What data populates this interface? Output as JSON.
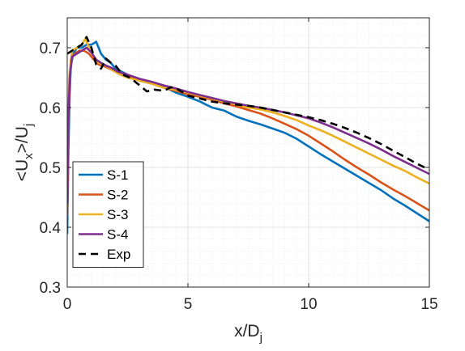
{
  "chart_data": {
    "type": "line",
    "xlabel": "x/D_j",
    "ylabel": "<U_x>/U_j",
    "xlim": [
      0,
      15
    ],
    "ylim": [
      0.3,
      0.75
    ],
    "xticks": [
      0,
      5,
      10,
      15
    ],
    "xtick_labels": [
      "0",
      "5",
      "10",
      "15"
    ],
    "yticks": [
      0.3,
      0.4,
      0.5,
      0.6,
      0.7
    ],
    "ytick_labels": [
      "0.3",
      "0.4",
      "0.5",
      "0.6",
      "0.7"
    ],
    "grid": "major and minor",
    "legend_position": "bottom-left",
    "series": [
      {
        "name": "S-1",
        "color": "#0072BD",
        "dash": "solid",
        "points": [
          [
            0,
            0.39
          ],
          [
            0.05,
            0.53
          ],
          [
            0.1,
            0.62
          ],
          [
            0.15,
            0.67
          ],
          [
            0.25,
            0.69
          ],
          [
            0.4,
            0.7
          ],
          [
            0.6,
            0.7
          ],
          [
            0.8,
            0.705
          ],
          [
            1.0,
            0.705
          ],
          [
            1.2,
            0.71
          ],
          [
            1.4,
            0.69
          ],
          [
            1.6,
            0.68
          ],
          [
            1.8,
            0.675
          ],
          [
            2.0,
            0.665
          ],
          [
            2.5,
            0.655
          ],
          [
            3.0,
            0.645
          ],
          [
            3.5,
            0.64
          ],
          [
            4.0,
            0.635
          ],
          [
            4.5,
            0.625
          ],
          [
            5.0,
            0.618
          ],
          [
            5.5,
            0.61
          ],
          [
            6.0,
            0.6
          ],
          [
            6.5,
            0.595
          ],
          [
            7.0,
            0.585
          ],
          [
            7.5,
            0.578
          ],
          [
            8.0,
            0.572
          ],
          [
            8.5,
            0.565
          ],
          [
            9.0,
            0.558
          ],
          [
            9.5,
            0.548
          ],
          [
            10.0,
            0.535
          ],
          [
            10.5,
            0.522
          ],
          [
            11.0,
            0.51
          ],
          [
            11.5,
            0.498
          ],
          [
            12.0,
            0.486
          ],
          [
            12.5,
            0.474
          ],
          [
            13.0,
            0.462
          ],
          [
            13.5,
            0.448
          ],
          [
            14.0,
            0.436
          ],
          [
            14.5,
            0.423
          ],
          [
            15.0,
            0.41
          ]
        ]
      },
      {
        "name": "S-2",
        "color": "#D95319",
        "dash": "solid",
        "points": [
          [
            0,
            0.42
          ],
          [
            0.05,
            0.56
          ],
          [
            0.1,
            0.64
          ],
          [
            0.15,
            0.68
          ],
          [
            0.3,
            0.69
          ],
          [
            0.5,
            0.695
          ],
          [
            0.7,
            0.695
          ],
          [
            0.9,
            0.69
          ],
          [
            1.1,
            0.68
          ],
          [
            1.3,
            0.672
          ],
          [
            1.6,
            0.668
          ],
          [
            1.9,
            0.662
          ],
          [
            2.2,
            0.655
          ],
          [
            2.5,
            0.652
          ],
          [
            3.0,
            0.645
          ],
          [
            3.5,
            0.64
          ],
          [
            4.0,
            0.633
          ],
          [
            4.5,
            0.628
          ],
          [
            5.0,
            0.622
          ],
          [
            5.5,
            0.618
          ],
          [
            6.0,
            0.613
          ],
          [
            6.5,
            0.607
          ],
          [
            7.0,
            0.602
          ],
          [
            7.5,
            0.596
          ],
          [
            8.0,
            0.59
          ],
          [
            8.5,
            0.582
          ],
          [
            9.0,
            0.573
          ],
          [
            9.5,
            0.564
          ],
          [
            10.0,
            0.553
          ],
          [
            10.5,
            0.54
          ],
          [
            11.0,
            0.527
          ],
          [
            11.5,
            0.513
          ],
          [
            12.0,
            0.5
          ],
          [
            12.5,
            0.488
          ],
          [
            13.0,
            0.475
          ],
          [
            13.5,
            0.463
          ],
          [
            14.0,
            0.452
          ],
          [
            14.5,
            0.44
          ],
          [
            15.0,
            0.428
          ]
        ]
      },
      {
        "name": "S-3",
        "color": "#EDB120",
        "dash": "solid",
        "points": [
          [
            0,
            0.46
          ],
          [
            0.05,
            0.6
          ],
          [
            0.1,
            0.66
          ],
          [
            0.2,
            0.695
          ],
          [
            0.4,
            0.7
          ],
          [
            0.6,
            0.705
          ],
          [
            0.75,
            0.715
          ],
          [
            0.9,
            0.7
          ],
          [
            1.1,
            0.685
          ],
          [
            1.3,
            0.675
          ],
          [
            1.6,
            0.67
          ],
          [
            1.9,
            0.662
          ],
          [
            2.2,
            0.655
          ],
          [
            2.5,
            0.65
          ],
          [
            3.0,
            0.645
          ],
          [
            3.5,
            0.64
          ],
          [
            4.0,
            0.633
          ],
          [
            4.5,
            0.63
          ],
          [
            5.0,
            0.625
          ],
          [
            5.5,
            0.62
          ],
          [
            6.0,
            0.615
          ],
          [
            6.5,
            0.61
          ],
          [
            7.0,
            0.605
          ],
          [
            7.5,
            0.6
          ],
          [
            8.0,
            0.597
          ],
          [
            8.5,
            0.592
          ],
          [
            9.0,
            0.586
          ],
          [
            9.5,
            0.579
          ],
          [
            10.0,
            0.57
          ],
          [
            10.5,
            0.562
          ],
          [
            11.0,
            0.553
          ],
          [
            11.5,
            0.543
          ],
          [
            12.0,
            0.533
          ],
          [
            12.5,
            0.523
          ],
          [
            13.0,
            0.513
          ],
          [
            13.5,
            0.503
          ],
          [
            14.0,
            0.494
          ],
          [
            14.5,
            0.483
          ],
          [
            15.0,
            0.473
          ]
        ]
      },
      {
        "name": "S-4",
        "color": "#7E2F8E",
        "dash": "solid",
        "points": [
          [
            0,
            0.44
          ],
          [
            0.05,
            0.58
          ],
          [
            0.1,
            0.65
          ],
          [
            0.2,
            0.685
          ],
          [
            0.4,
            0.69
          ],
          [
            0.6,
            0.695
          ],
          [
            0.8,
            0.7
          ],
          [
            1.0,
            0.692
          ],
          [
            1.2,
            0.68
          ],
          [
            1.5,
            0.672
          ],
          [
            1.8,
            0.667
          ],
          [
            2.1,
            0.66
          ],
          [
            2.5,
            0.655
          ],
          [
            3.0,
            0.648
          ],
          [
            3.5,
            0.643
          ],
          [
            4.0,
            0.637
          ],
          [
            4.5,
            0.632
          ],
          [
            5.0,
            0.626
          ],
          [
            5.5,
            0.621
          ],
          [
            6.0,
            0.616
          ],
          [
            6.5,
            0.611
          ],
          [
            7.0,
            0.607
          ],
          [
            7.5,
            0.603
          ],
          [
            8.0,
            0.6
          ],
          [
            8.5,
            0.596
          ],
          [
            9.0,
            0.592
          ],
          [
            9.5,
            0.587
          ],
          [
            10.0,
            0.582
          ],
          [
            10.5,
            0.575
          ],
          [
            11.0,
            0.567
          ],
          [
            11.5,
            0.558
          ],
          [
            12.0,
            0.549
          ],
          [
            12.5,
            0.54
          ],
          [
            13.0,
            0.53
          ],
          [
            13.5,
            0.519
          ],
          [
            14.0,
            0.509
          ],
          [
            14.5,
            0.499
          ],
          [
            15.0,
            0.489
          ]
        ]
      },
      {
        "name": "Exp",
        "color": "#000000",
        "dash": "dashed",
        "points": [
          [
            0,
            0.69
          ],
          [
            0.2,
            0.695
          ],
          [
            0.4,
            0.7
          ],
          [
            0.6,
            0.705
          ],
          [
            0.8,
            0.718
          ],
          [
            1.0,
            0.7
          ],
          [
            1.2,
            0.672
          ],
          [
            1.4,
            0.665
          ],
          [
            1.6,
            0.682
          ],
          [
            1.8,
            0.675
          ],
          [
            2.0,
            0.67
          ],
          [
            2.3,
            0.655
          ],
          [
            2.6,
            0.65
          ],
          [
            3.0,
            0.637
          ],
          [
            3.3,
            0.627
          ],
          [
            3.6,
            0.63
          ],
          [
            4.0,
            0.628
          ],
          [
            4.3,
            0.634
          ],
          [
            4.6,
            0.63
          ],
          [
            5.0,
            0.62
          ],
          [
            5.5,
            0.615
          ],
          [
            6.0,
            0.61
          ],
          [
            6.5,
            0.607
          ],
          [
            7.0,
            0.605
          ],
          [
            7.5,
            0.603
          ],
          [
            8.0,
            0.6
          ],
          [
            8.5,
            0.596
          ],
          [
            9.0,
            0.592
          ],
          [
            9.5,
            0.588
          ],
          [
            10.0,
            0.584
          ],
          [
            10.5,
            0.579
          ],
          [
            11.0,
            0.573
          ],
          [
            11.5,
            0.566
          ],
          [
            12.0,
            0.558
          ],
          [
            12.5,
            0.549
          ],
          [
            13.0,
            0.539
          ],
          [
            13.5,
            0.528
          ],
          [
            14.0,
            0.517
          ],
          [
            14.5,
            0.506
          ],
          [
            15.0,
            0.496
          ]
        ]
      }
    ]
  }
}
